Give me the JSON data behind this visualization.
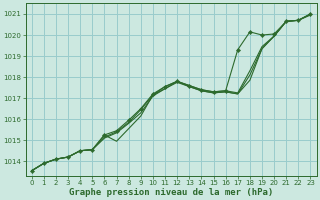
{
  "bg_color": "#cce8e0",
  "grid_color": "#99cccc",
  "line_color": "#2d6a2d",
  "xlabel": "Graphe pression niveau de la mer (hPa)",
  "ylim": [
    1013.3,
    1021.5
  ],
  "xlim": [
    -0.5,
    23.5
  ],
  "yticks": [
    1014,
    1015,
    1016,
    1017,
    1018,
    1019,
    1020,
    1021
  ],
  "xticks": [
    0,
    1,
    2,
    3,
    4,
    5,
    6,
    7,
    8,
    9,
    10,
    11,
    12,
    13,
    14,
    15,
    16,
    17,
    18,
    19,
    20,
    21,
    22,
    23
  ],
  "series": [
    [
      1013.55,
      1013.9,
      1014.1,
      1014.2,
      1014.5,
      1014.55,
      1015.1,
      1015.35,
      1015.8,
      1016.3,
      1017.1,
      1017.45,
      1017.75,
      1017.55,
      1017.35,
      1017.25,
      1017.3,
      1017.2,
      1018.1,
      1019.35,
      1019.95,
      1020.65,
      1020.7,
      1020.95
    ],
    [
      1013.55,
      1013.9,
      1014.1,
      1014.2,
      1014.5,
      1014.55,
      1015.15,
      1015.4,
      1015.85,
      1016.45,
      1017.15,
      1017.55,
      1017.8,
      1017.6,
      1017.4,
      1017.3,
      1017.35,
      1017.25,
      1018.3,
      1019.45,
      1019.95,
      1020.65,
      1020.7,
      1021.0
    ],
    [
      1013.55,
      1013.9,
      1014.1,
      1014.2,
      1014.5,
      1014.55,
      1015.25,
      1015.45,
      1015.95,
      1016.5,
      1017.2,
      1017.55,
      1017.8,
      1017.6,
      1017.4,
      1017.3,
      1017.35,
      1019.3,
      1020.15,
      1020.0,
      1020.05,
      1020.65,
      1020.7,
      1021.0
    ],
    [
      1013.55,
      1013.9,
      1014.1,
      1014.2,
      1014.5,
      1014.55,
      1015.25,
      1014.95,
      1015.55,
      1016.15,
      1017.15,
      1017.45,
      1017.8,
      1017.55,
      1017.35,
      1017.25,
      1017.3,
      1017.2,
      1017.85,
      1019.35,
      1019.95,
      1020.65,
      1020.7,
      1021.0
    ]
  ],
  "marker_series_index": 2,
  "title_fontsize": 5.5,
  "tick_fontsize": 5,
  "xlabel_fontsize": 6.5
}
